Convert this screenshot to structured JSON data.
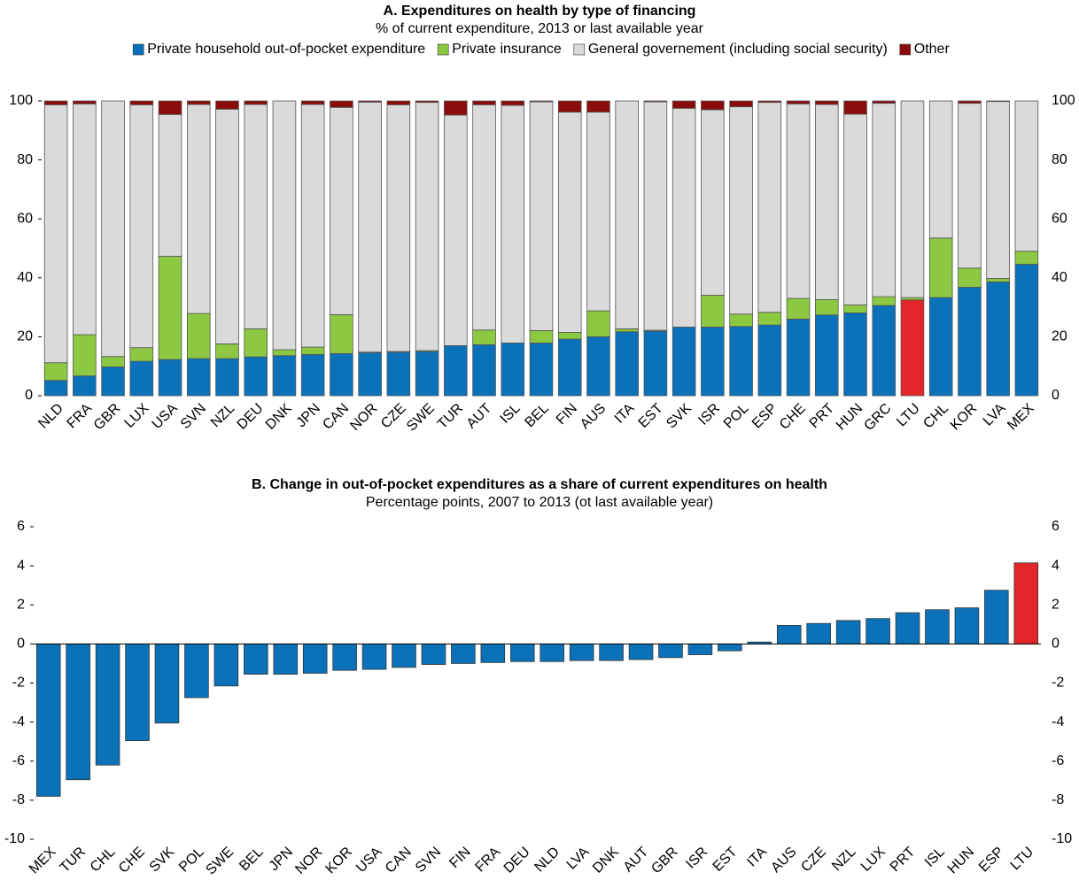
{
  "chart_data": [
    {
      "type": "stacked-bar",
      "title": "A. Expenditures on health by type of financing",
      "subtitle": "% of current expenditure, 2013 or last available year",
      "categories": [
        "NLD",
        "FRA",
        "GBR",
        "LUX",
        "USA",
        "SVN",
        "NZL",
        "DEU",
        "DNK",
        "JPN",
        "CAN",
        "NOR",
        "CZE",
        "SWE",
        "TUR",
        "AUT",
        "ISL",
        "BEL",
        "FIN",
        "AUS",
        "ITA",
        "EST",
        "SVK",
        "ISR",
        "POL",
        "ESP",
        "CHE",
        "PRT",
        "HUN",
        "GRC",
        "LTU",
        "CHL",
        "KOR",
        "LVA",
        "MEX"
      ],
      "series": [
        {
          "name": "Private household out-of-pocket expenditure",
          "color": "#0b72ba",
          "values": [
            5.2,
            6.7,
            9.8,
            11.7,
            12.3,
            12.6,
            12.6,
            13.2,
            13.6,
            14,
            14.3,
            14.6,
            14.8,
            15,
            17,
            17.3,
            17.9,
            17.9,
            19.2,
            20,
            21.7,
            21.9,
            23.3,
            23.3,
            23.5,
            24,
            26,
            27.4,
            28.1,
            30.6,
            32.5,
            33.3,
            36.8,
            38.6,
            44.6
          ]
        },
        {
          "name": "Private insurance",
          "color": "#8cc841",
          "values": [
            6,
            14,
            3.5,
            4.6,
            35,
            15.3,
            5,
            9.5,
            2,
            2.5,
            13.2,
            0.2,
            0.2,
            0.3,
            0,
            5,
            0,
            4.2,
            2.3,
            8.8,
            1,
            0.3,
            0,
            10.8,
            4.2,
            4.3,
            7,
            5.2,
            2.7,
            3,
            0.8,
            20.2,
            6.5,
            1.2,
            4.4
          ]
        },
        {
          "name": "General governement (including social security)",
          "color": "#dadada",
          "values": [
            87.5,
            78.3,
            86.7,
            82.4,
            48.1,
            70.9,
            79.6,
            76.1,
            84.4,
            82.3,
            70.3,
            84.8,
            83.7,
            84.2,
            78.2,
            76.4,
            80.6,
            77.6,
            74.7,
            67.4,
            77.3,
            77.5,
            74.2,
            62.9,
            70.3,
            71.2,
            66,
            66.2,
            64.7,
            65.6,
            66.7,
            46.5,
            55.9,
            60,
            51
          ]
        },
        {
          "name": "Other",
          "color": "#8b0c0c",
          "values": [
            1.3,
            1,
            0,
            1.3,
            4.6,
            1.2,
            2.8,
            1.2,
            0,
            1.2,
            2.2,
            0.4,
            1.3,
            0.5,
            4.8,
            1.3,
            1.5,
            0.3,
            3.8,
            3.8,
            0,
            0.3,
            2.5,
            3,
            2,
            0.5,
            1,
            1.2,
            4.5,
            0.8,
            0,
            0,
            0.8,
            0.2,
            0
          ]
        }
      ],
      "highlight": "LTU",
      "highlight_color": "#e3262a",
      "ylim": [
        0,
        100
      ],
      "yticks": [
        0,
        20,
        40,
        60,
        80,
        100
      ],
      "mirror_ticks": true,
      "legend": "top"
    },
    {
      "type": "bar",
      "title": "B. Change in out-of-pocket expenditures as a share of current expenditures on health",
      "subtitle": "Percentage points, 2007 to 2013 (ot last available year)",
      "categories": [
        "MEX",
        "TUR",
        "CHL",
        "CHE",
        "SVK",
        "POL",
        "SWE",
        "BEL",
        "JPN",
        "NOR",
        "KOR",
        "USA",
        "CAN",
        "SVN",
        "FIN",
        "FRA",
        "DEU",
        "NLD",
        "LVA",
        "DNK",
        "AUT",
        "GBR",
        "ISR",
        "EST",
        "ITA",
        "AUS",
        "CZE",
        "NZL",
        "LUX",
        "PRT",
        "ISL",
        "HUN",
        "ESP",
        "LTU"
      ],
      "values": [
        -7.8,
        -6.95,
        -6.2,
        -4.95,
        -4.05,
        -2.75,
        -2.15,
        -1.55,
        -1.55,
        -1.5,
        -1.35,
        -1.3,
        -1.2,
        -1.05,
        -1.0,
        -0.95,
        -0.9,
        -0.9,
        -0.85,
        -0.85,
        -0.8,
        -0.7,
        -0.55,
        -0.35,
        0.1,
        0.95,
        1.05,
        1.2,
        1.3,
        1.6,
        1.75,
        1.85,
        2.75,
        4.15
      ],
      "color": "#0b72ba",
      "highlight": "LTU",
      "highlight_color": "#e3262a",
      "ylim": [
        -10,
        6
      ],
      "yticks": [
        -10,
        -8,
        -6,
        -4,
        -2,
        0,
        2,
        4,
        6
      ],
      "mirror_ticks": true
    }
  ]
}
